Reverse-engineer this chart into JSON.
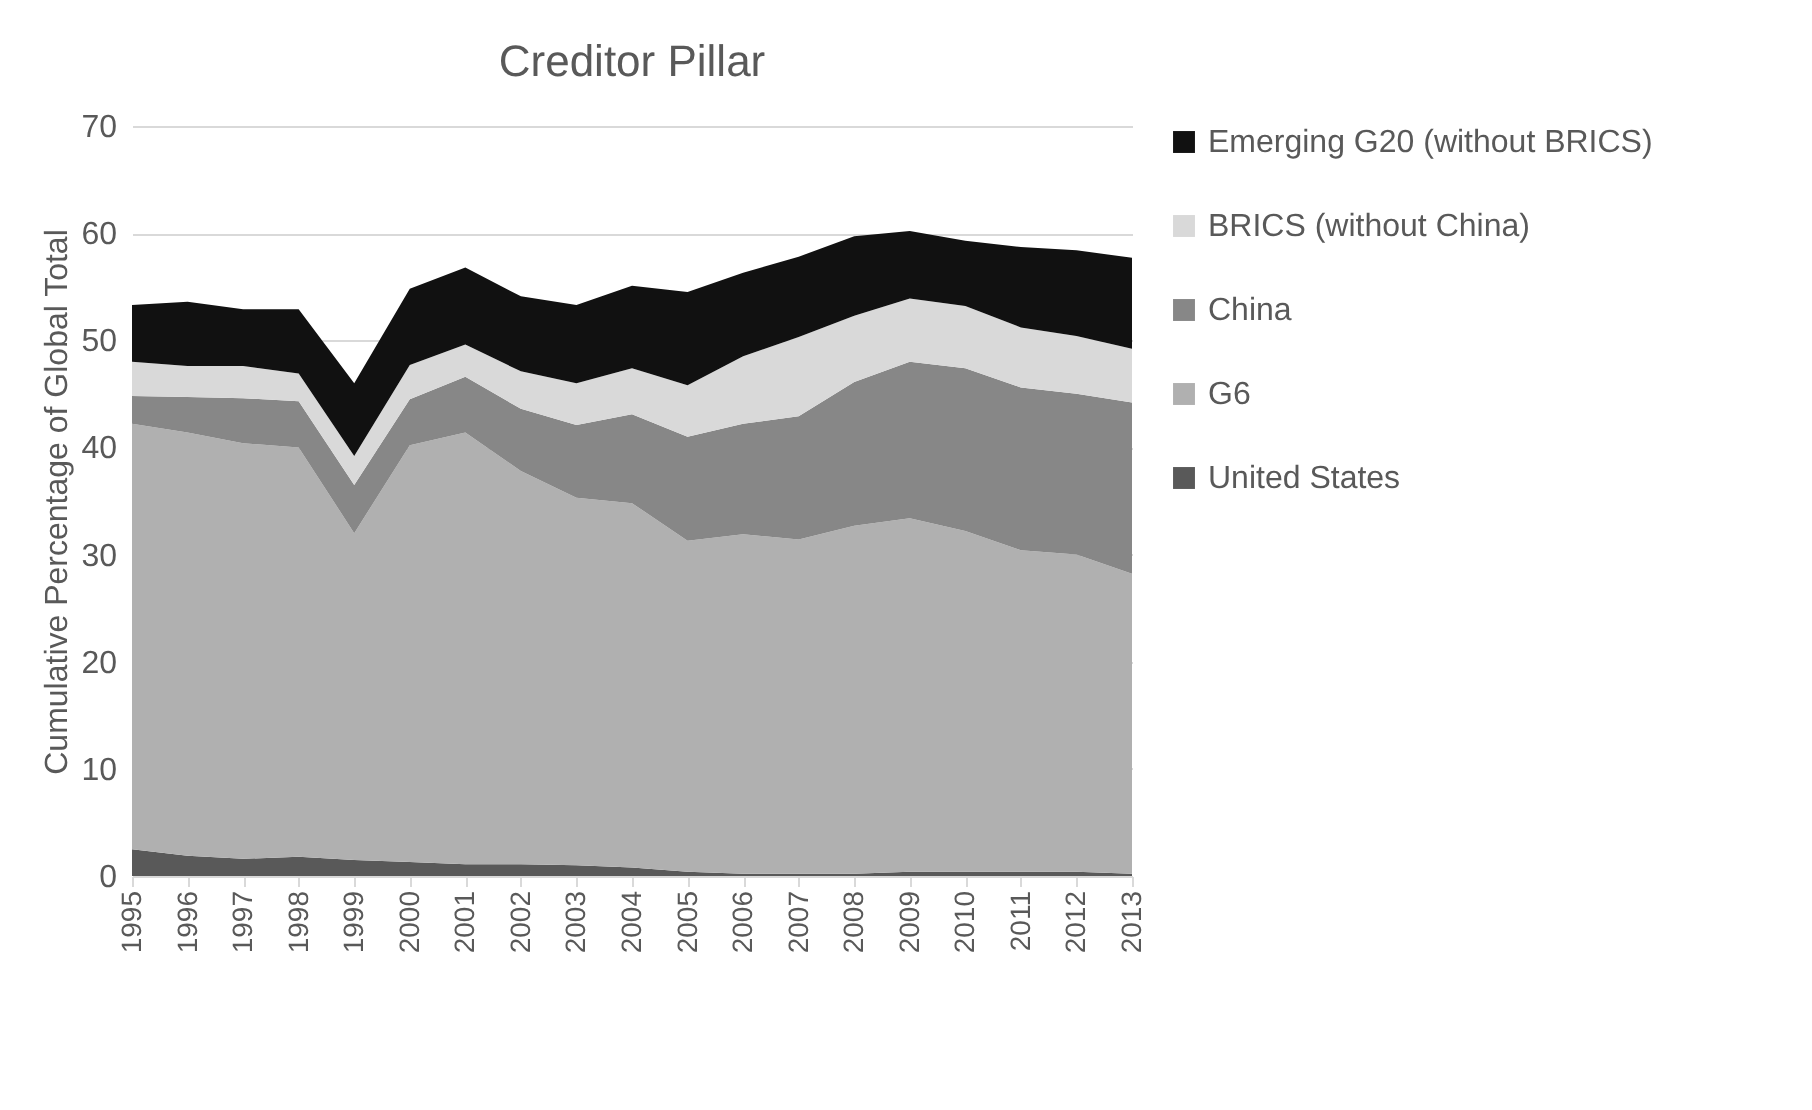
{
  "chart_data": {
    "type": "area",
    "title": "Creditor Pillar",
    "ylabel": "Cumulative Percentage of Global Total",
    "categories": [
      "1995",
      "1996",
      "1997",
      "1998",
      "1999",
      "2000",
      "2001",
      "2002",
      "2003",
      "2004",
      "2005",
      "2006",
      "2007",
      "2008",
      "2009",
      "2010",
      "2011",
      "2012",
      "2013"
    ],
    "stacked": true,
    "ylim": [
      0,
      70
    ],
    "yticks": [
      0,
      10,
      20,
      30,
      40,
      50,
      60,
      70
    ],
    "grid": "y",
    "legend": "right",
    "series": [
      {
        "name": "United States",
        "color": "#595959",
        "values": [
          2.5,
          1.9,
          1.6,
          1.8,
          1.5,
          1.3,
          1.1,
          1.1,
          1.0,
          0.8,
          0.4,
          0.2,
          0.2,
          0.2,
          0.4,
          0.4,
          0.4,
          0.4,
          0.2
        ]
      },
      {
        "name": "G6",
        "color": "#b0b0b0",
        "values": [
          39.7,
          39.5,
          38.8,
          38.2,
          30.5,
          38.9,
          40.3,
          36.7,
          34.3,
          34.0,
          30.9,
          31.7,
          31.2,
          32.5,
          33.0,
          31.8,
          30.0,
          29.6,
          28.0
        ]
      },
      {
        "name": "China",
        "color": "#878787",
        "values": [
          2.6,
          3.3,
          4.2,
          4.3,
          4.5,
          4.3,
          5.2,
          5.8,
          6.8,
          8.3,
          9.7,
          10.3,
          11.5,
          13.4,
          14.6,
          15.2,
          15.2,
          15.0,
          16.0
        ]
      },
      {
        "name": "BRICS (without China)",
        "color": "#d9d9d9",
        "values": [
          3.2,
          2.9,
          3.0,
          2.6,
          2.7,
          3.2,
          3.0,
          3.5,
          3.9,
          4.3,
          4.8,
          6.3,
          7.4,
          6.2,
          5.9,
          5.8,
          5.6,
          5.4,
          5.0
        ]
      },
      {
        "name": "Emerging G20 (without BRICS)",
        "color": "#111111",
        "values": [
          5.3,
          6.0,
          5.3,
          6.0,
          6.8,
          7.1,
          7.2,
          7.0,
          7.3,
          7.7,
          8.7,
          7.8,
          7.5,
          7.4,
          6.3,
          6.1,
          7.5,
          8.0,
          8.5
        ]
      }
    ]
  }
}
